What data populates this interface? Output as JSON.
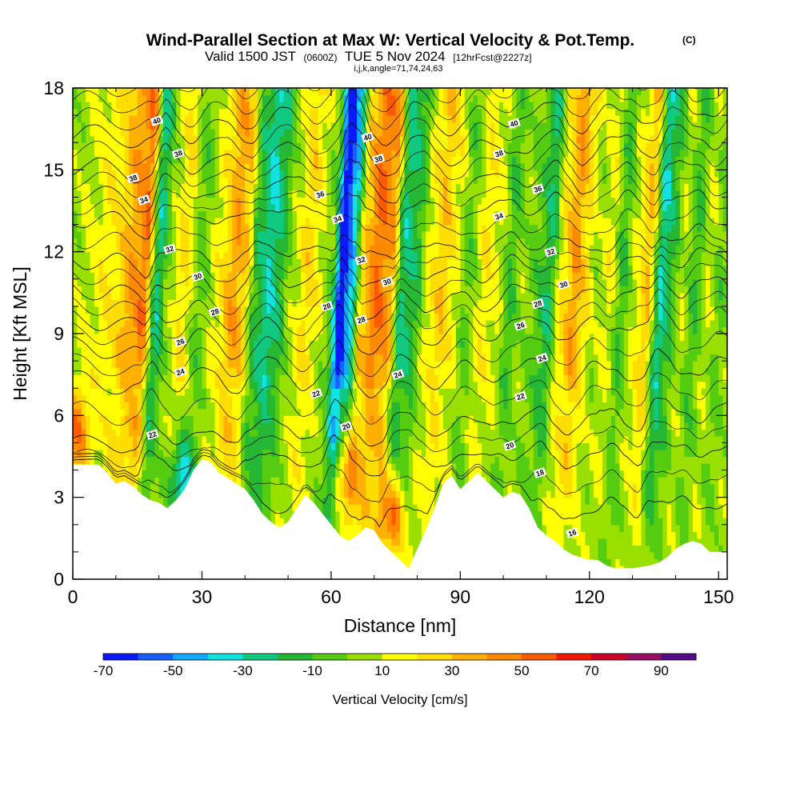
{
  "header": {
    "title": "Wind-Parallel Section at Max W: Vertical Velocity & Pot.Temp.",
    "copyright": "(C)",
    "valid_prefix": "Valid 1500 JST",
    "valid_z": "(0600Z)",
    "valid_date": "TUE 5 Nov 2024",
    "forecast": "[12hrFcst@2227z]",
    "grid_info": "i,j,k,angle=71,74,24,63"
  },
  "chart_data": {
    "type": "heatmap",
    "xlabel": "Distance [nm]",
    "ylabel": "Height [Kft MSL]",
    "xlim": [
      0,
      152
    ],
    "ylim": [
      0,
      18
    ],
    "x_ticks": [
      0,
      30,
      60,
      90,
      120,
      150
    ],
    "y_ticks": [
      0,
      3,
      6,
      9,
      12,
      15,
      18
    ],
    "x_tick_labels": [
      "0",
      "30",
      "60",
      "90",
      "120",
      "150"
    ],
    "y_tick_labels": [
      "0",
      "3",
      "6",
      "9",
      "12",
      "15",
      "18"
    ],
    "colorbar": {
      "title": "Vertical Velocity [cm/s]",
      "bounds": [
        -70,
        100
      ],
      "step": 10,
      "labels": [
        "-70",
        "-50",
        "-30",
        "-10",
        "10",
        "30",
        "50",
        "70",
        "90"
      ],
      "label_values": [
        -70,
        -50,
        -30,
        -10,
        10,
        30,
        50,
        70,
        90
      ],
      "colors": [
        "#0a1aff",
        "#1a5fff",
        "#12a8ff",
        "#12e2e2",
        "#10c880",
        "#26b835",
        "#55cc10",
        "#99e000",
        "#ffff00",
        "#ffdd00",
        "#ffb000",
        "#ff8a00",
        "#ff5a00",
        "#ee1a00",
        "#cc0028",
        "#991060",
        "#550a8a"
      ]
    },
    "terrain": [
      [
        0,
        4.2
      ],
      [
        3,
        4.2
      ],
      [
        6,
        4.2
      ],
      [
        8,
        3.9
      ],
      [
        10,
        3.5
      ],
      [
        12,
        3.6
      ],
      [
        14,
        3.4
      ],
      [
        16,
        3.1
      ],
      [
        18,
        2.9
      ],
      [
        20,
        2.8
      ],
      [
        22,
        2.6
      ],
      [
        24,
        2.9
      ],
      [
        26,
        3.3
      ],
      [
        28,
        4.0
      ],
      [
        30,
        4.4
      ],
      [
        32,
        4.3
      ],
      [
        34,
        3.9
      ],
      [
        36,
        3.7
      ],
      [
        38,
        3.5
      ],
      [
        40,
        3.3
      ],
      [
        42,
        2.9
      ],
      [
        44,
        2.4
      ],
      [
        46,
        2.1
      ],
      [
        48,
        1.9
      ],
      [
        50,
        2.1
      ],
      [
        52,
        2.6
      ],
      [
        54,
        3.1
      ],
      [
        56,
        2.8
      ],
      [
        58,
        2.4
      ],
      [
        60,
        2.0
      ],
      [
        62,
        1.6
      ],
      [
        64,
        1.4
      ],
      [
        66,
        1.6
      ],
      [
        68,
        1.9
      ],
      [
        70,
        1.8
      ],
      [
        72,
        1.3
      ],
      [
        74,
        1.0
      ],
      [
        76,
        0.7
      ],
      [
        78,
        0.4
      ],
      [
        80,
        1.1
      ],
      [
        82,
        1.8
      ],
      [
        84,
        2.6
      ],
      [
        86,
        3.5
      ],
      [
        88,
        3.8
      ],
      [
        90,
        3.3
      ],
      [
        92,
        3.6
      ],
      [
        94,
        3.9
      ],
      [
        96,
        3.6
      ],
      [
        98,
        3.3
      ],
      [
        100,
        3.0
      ],
      [
        102,
        3.2
      ],
      [
        104,
        3.1
      ],
      [
        106,
        2.6
      ],
      [
        108,
        1.9
      ],
      [
        110,
        1.6
      ],
      [
        112,
        1.4
      ],
      [
        114,
        1.1
      ],
      [
        116,
        0.9
      ],
      [
        118,
        0.8
      ],
      [
        120,
        0.7
      ],
      [
        122,
        0.7
      ],
      [
        124,
        0.5
      ],
      [
        126,
        0.4
      ],
      [
        130,
        0.4
      ],
      [
        134,
        0.5
      ],
      [
        136,
        0.6
      ],
      [
        138,
        0.8
      ],
      [
        140,
        1.1
      ],
      [
        142,
        1.3
      ],
      [
        144,
        1.4
      ],
      [
        146,
        1.3
      ],
      [
        148,
        1.0
      ],
      [
        150,
        1.0
      ],
      [
        152,
        1.0
      ]
    ],
    "field": {
      "x_bands": [
        {
          "x": 0,
          "w": 5
        },
        {
          "x": 2,
          "w": 10
        },
        {
          "x": 8,
          "w": 18
        },
        {
          "x": 14,
          "w": 40
        },
        {
          "x": 16,
          "w": 48
        },
        {
          "x": 19,
          "w": -25
        },
        {
          "x": 22,
          "w": 5
        },
        {
          "x": 25,
          "w": 22
        },
        {
          "x": 29,
          "w": -5
        },
        {
          "x": 33,
          "w": 15
        },
        {
          "x": 37,
          "w": 38
        },
        {
          "x": 39,
          "w": 30
        },
        {
          "x": 42,
          "w": -15
        },
        {
          "x": 45,
          "w": -30
        },
        {
          "x": 47,
          "w": -20
        },
        {
          "x": 50,
          "w": 5
        },
        {
          "x": 54,
          "w": 25
        },
        {
          "x": 56,
          "w": 15
        },
        {
          "x": 59,
          "w": 0
        },
        {
          "x": 62,
          "w": -72
        },
        {
          "x": 64,
          "w": -40
        },
        {
          "x": 67,
          "w": 30
        },
        {
          "x": 70,
          "w": 50
        },
        {
          "x": 73,
          "w": 40
        },
        {
          "x": 76,
          "w": -25
        },
        {
          "x": 79,
          "w": -15
        },
        {
          "x": 82,
          "w": 15
        },
        {
          "x": 85,
          "w": 28
        },
        {
          "x": 88,
          "w": 15
        },
        {
          "x": 91,
          "w": -5
        },
        {
          "x": 95,
          "w": 18
        },
        {
          "x": 98,
          "w": 12
        },
        {
          "x": 101,
          "w": -10
        },
        {
          "x": 104,
          "w": 5
        },
        {
          "x": 107,
          "w": -5
        },
        {
          "x": 110,
          "w": -20
        },
        {
          "x": 113,
          "w": 20
        },
        {
          "x": 116,
          "w": 40
        },
        {
          "x": 118,
          "w": 25
        },
        {
          "x": 121,
          "w": 5
        },
        {
          "x": 124,
          "w": 15
        },
        {
          "x": 127,
          "w": -10
        },
        {
          "x": 130,
          "w": 12
        },
        {
          "x": 133,
          "w": 30
        },
        {
          "x": 136,
          "w": -30
        },
        {
          "x": 138,
          "w": -15
        },
        {
          "x": 141,
          "w": 8
        },
        {
          "x": 144,
          "w": -10
        },
        {
          "x": 147,
          "w": 10
        },
        {
          "x": 150,
          "w": -5
        },
        {
          "x": 152,
          "w": 5
        }
      ],
      "low_level_cells": [
        {
          "x": 63,
          "y": 3.8,
          "w": 45
        },
        {
          "x": 74,
          "y": 2.3,
          "w": 55
        },
        {
          "x": 25,
          "y": 3.6,
          "w": -45
        },
        {
          "x": 1,
          "y": 5.5,
          "w": 40
        },
        {
          "x": 126,
          "y": 2.0,
          "w": -5
        }
      ]
    },
    "theta_contours": [
      {
        "value": 16,
        "y_left": null,
        "y_right": null
      },
      {
        "value": 18,
        "y_left": 2.2,
        "y_right": 2.8
      },
      {
        "value": 20,
        "y_left": 4.2,
        "y_right": 4.8
      },
      {
        "value": 22,
        "y_left": 5.2,
        "y_right": 6.2
      },
      {
        "value": 24,
        "y_left": 7.4,
        "y_right": 7.8
      },
      {
        "value": 26,
        "y_left": 8.6,
        "y_right": 9.6
      },
      {
        "value": 28,
        "y_left": 9.6,
        "y_right": 10.8
      },
      {
        "value": 30,
        "y_left": 10.7,
        "y_right": 11.8
      },
      {
        "value": 32,
        "y_left": 11.8,
        "y_right": 12.6
      },
      {
        "value": 34,
        "y_left": 13.3,
        "y_right": 13.9
      },
      {
        "value": 36,
        "y_left": 14.2,
        "y_right": 15.0
      },
      {
        "value": 38,
        "y_left": 15.2,
        "y_right": 16.2
      },
      {
        "value": 40,
        "y_left": 16.4,
        "y_right": 17.3
      }
    ],
    "contour_labels": [
      {
        "text": "40",
        "x": 19.5,
        "y": 16.8
      },
      {
        "text": "38",
        "x": 24.5,
        "y": 15.6
      },
      {
        "text": "38",
        "x": 14,
        "y": 14.7
      },
      {
        "text": "34",
        "x": 16.5,
        "y": 13.9
      },
      {
        "text": "32",
        "x": 22.5,
        "y": 12.1
      },
      {
        "text": "30",
        "x": 29,
        "y": 11.1
      },
      {
        "text": "28",
        "x": 33,
        "y": 9.8
      },
      {
        "text": "26",
        "x": 25,
        "y": 8.7
      },
      {
        "text": "24",
        "x": 25,
        "y": 7.6
      },
      {
        "text": "22",
        "x": 18.5,
        "y": 5.3
      },
      {
        "text": "36",
        "x": 57.5,
        "y": 14.1
      },
      {
        "text": "34",
        "x": 61.5,
        "y": 13.2
      },
      {
        "text": "32",
        "x": 67,
        "y": 11.7
      },
      {
        "text": "30",
        "x": 73,
        "y": 10.9
      },
      {
        "text": "28",
        "x": 59,
        "y": 10.0
      },
      {
        "text": "28",
        "x": 67,
        "y": 9.5
      },
      {
        "text": "40",
        "x": 68.5,
        "y": 16.2
      },
      {
        "text": "38",
        "x": 71,
        "y": 15.4
      },
      {
        "text": "24",
        "x": 75.5,
        "y": 7.5
      },
      {
        "text": "22",
        "x": 56.5,
        "y": 6.8
      },
      {
        "text": "20",
        "x": 63.5,
        "y": 5.6
      },
      {
        "text": "40",
        "x": 102.5,
        "y": 16.7
      },
      {
        "text": "38",
        "x": 99,
        "y": 15.6
      },
      {
        "text": "36",
        "x": 108,
        "y": 14.3
      },
      {
        "text": "34",
        "x": 99,
        "y": 13.3
      },
      {
        "text": "32",
        "x": 111,
        "y": 12.0
      },
      {
        "text": "30",
        "x": 114,
        "y": 10.8
      },
      {
        "text": "28",
        "x": 108,
        "y": 10.1
      },
      {
        "text": "26",
        "x": 104,
        "y": 9.3
      },
      {
        "text": "24",
        "x": 109,
        "y": 8.1
      },
      {
        "text": "22",
        "x": 104,
        "y": 6.7
      },
      {
        "text": "20",
        "x": 101.5,
        "y": 4.9
      },
      {
        "text": "18",
        "x": 108.5,
        "y": 3.9
      },
      {
        "text": "16",
        "x": 116,
        "y": 1.7
      }
    ]
  }
}
